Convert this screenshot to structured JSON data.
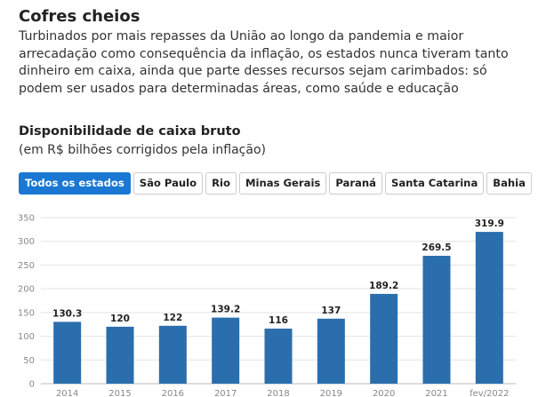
{
  "header": {
    "title": "Cofres cheios",
    "description": "Turbinados por mais repasses da União ao longo da pandemia e maior arrecadação como consequência da inflação, os estados nunca tiveram tanto dinheiro em caixa, ainda que parte desses recursos sejam carimbados: só podem ser usados para determinadas áreas, como saúde e educação"
  },
  "filters": {
    "buttons": [
      {
        "label": "Todos os estados",
        "active": true
      },
      {
        "label": "São Paulo",
        "active": false
      },
      {
        "label": "Rio",
        "active": false
      },
      {
        "label": "Minas Gerais",
        "active": false
      },
      {
        "label": "Paraná",
        "active": false
      },
      {
        "label": "Santa Catarina",
        "active": false
      },
      {
        "label": "Bahia",
        "active": false
      }
    ]
  },
  "colors": {
    "bar": "#2a6ead",
    "active_button": "#1a77d3",
    "grid": "#e2e2e2"
  },
  "chart_data": {
    "type": "bar",
    "title": "Disponibilidade de caixa bruto",
    "subtitle": "(em R$ bilhões corrigidos pela inflação)",
    "categories": [
      "2014",
      "2015",
      "2016",
      "2017",
      "2018",
      "2019",
      "2020",
      "2021",
      "fev/2022"
    ],
    "values": [
      130.3,
      120,
      122,
      139.2,
      116,
      137,
      189.2,
      269.5,
      319.9
    ],
    "value_labels": [
      "130.3",
      "120",
      "122",
      "139.2",
      "116",
      "137",
      "189.2",
      "269.5",
      "319.9"
    ],
    "ylim": [
      0,
      350
    ],
    "yticks": [
      0,
      50,
      100,
      150,
      200,
      250,
      300,
      350
    ],
    "grid": true,
    "legend": "none"
  }
}
